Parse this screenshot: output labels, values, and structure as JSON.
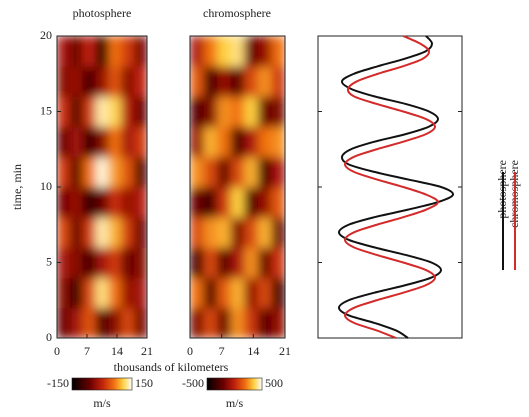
{
  "chart_data": [
    {
      "type": "heatmap",
      "title": "photosphere",
      "ylabel": "time, min",
      "xlabel": "thousands of kilometers",
      "x_edges": [
        0,
        3,
        6,
        9,
        12,
        15,
        18,
        21
      ],
      "y_edges": [
        0,
        2,
        4,
        6,
        8,
        10,
        12,
        14,
        16,
        18,
        20
      ],
      "values": [
        [
          -60,
          -20,
          40,
          -80,
          -40,
          30,
          -50
        ],
        [
          -40,
          -100,
          30,
          120,
          60,
          -30,
          -20
        ],
        [
          -20,
          -40,
          -90,
          -20,
          20,
          -60,
          -40
        ],
        [
          30,
          -60,
          20,
          130,
          90,
          20,
          -60
        ],
        [
          -50,
          -30,
          -110,
          -60,
          10,
          -30,
          -10
        ],
        [
          20,
          -70,
          60,
          140,
          80,
          40,
          -80
        ],
        [
          -60,
          -20,
          -100,
          -40,
          60,
          -20,
          20
        ],
        [
          10,
          -80,
          20,
          130,
          110,
          -10,
          -60
        ],
        [
          -40,
          -30,
          -90,
          -30,
          40,
          -40,
          0
        ],
        [
          -20,
          -60,
          0,
          -120,
          60,
          20,
          -50
        ]
      ],
      "xlim": [
        0,
        21
      ],
      "ylim": [
        0,
        20
      ],
      "xticks": [
        0,
        7,
        14,
        21
      ],
      "yticks": [
        0,
        5,
        10,
        15,
        20
      ],
      "colorbar": {
        "lim": [
          -150,
          150
        ],
        "ticks": [
          -150,
          150
        ],
        "label": "m/s"
      }
    },
    {
      "type": "heatmap",
      "title": "chromosphere",
      "x_edges": [
        0,
        3,
        6,
        9,
        12,
        15,
        18,
        21
      ],
      "y_edges": [
        0,
        2,
        4,
        6,
        8,
        10,
        12,
        14,
        16,
        18,
        20
      ],
      "values": [
        [
          -150,
          100,
          -200,
          250,
          50,
          -250,
          -100
        ],
        [
          200,
          -250,
          150,
          300,
          -100,
          100,
          -300
        ],
        [
          -300,
          100,
          -250,
          -50,
          250,
          -200,
          50
        ],
        [
          100,
          250,
          300,
          -150,
          100,
          300,
          -200
        ],
        [
          -200,
          -300,
          50,
          350,
          -250,
          -100,
          150
        ],
        [
          250,
          100,
          -200,
          100,
          300,
          -300,
          -50
        ],
        [
          -100,
          300,
          200,
          -300,
          -50,
          200,
          250
        ],
        [
          -250,
          -150,
          250,
          200,
          350,
          -200,
          -150
        ],
        [
          150,
          -300,
          -100,
          -250,
          100,
          250,
          50
        ],
        [
          -50,
          200,
          350,
          400,
          -200,
          -100,
          200
        ]
      ],
      "xlim": [
        0,
        21
      ],
      "ylim": [
        0,
        20
      ],
      "xticks": [
        0,
        7,
        14,
        21
      ],
      "colorbar": {
        "lim": [
          -500,
          500
        ],
        "ticks": [
          -500,
          500
        ],
        "label": "m/s"
      }
    },
    {
      "type": "line",
      "orientation": "vertical",
      "y": [
        0,
        0.5,
        1,
        1.5,
        2,
        2.5,
        3,
        3.5,
        4,
        4.5,
        5,
        5.5,
        6,
        6.5,
        7,
        7.5,
        8,
        8.5,
        9,
        9.5,
        10,
        10.5,
        11,
        11.5,
        12,
        12.5,
        13,
        13.5,
        14,
        14.5,
        15,
        15.5,
        16,
        16.5,
        17,
        17.5,
        18,
        18.5,
        19,
        19.5,
        20
      ],
      "ylim": [
        0,
        20
      ],
      "xlim": [
        -1.2,
        1.2
      ],
      "series": [
        {
          "name": "photosphere",
          "color": "#111111",
          "values": [
            0.3,
            0.1,
            -0.26,
            -0.69,
            -0.85,
            -0.69,
            -0.26,
            0.26,
            0.69,
            0.85,
            0.69,
            0.26,
            -0.26,
            -0.69,
            -0.85,
            -0.69,
            -0.26,
            0.3,
            0.8,
            1.05,
            0.85,
            0.3,
            -0.26,
            -0.69,
            -0.8,
            -0.65,
            -0.26,
            0.26,
            0.65,
            0.8,
            0.65,
            0.26,
            -0.26,
            -0.65,
            -0.8,
            -0.6,
            -0.2,
            0.25,
            0.6,
            0.7,
            0.6
          ]
        },
        {
          "name": "chromosphere",
          "color": "#d42a2a",
          "values": [
            0.1,
            -0.22,
            -0.6,
            -0.75,
            -0.6,
            -0.22,
            0.22,
            0.6,
            0.75,
            0.6,
            0.22,
            -0.22,
            -0.6,
            -0.75,
            -0.6,
            -0.22,
            0.22,
            0.6,
            0.8,
            0.6,
            0.22,
            -0.22,
            -0.6,
            -0.75,
            -0.6,
            -0.22,
            0.22,
            0.6,
            0.75,
            0.6,
            0.22,
            -0.22,
            -0.6,
            -0.7,
            -0.55,
            -0.2,
            0.22,
            0.55,
            0.65,
            0.5,
            0.22
          ]
        }
      ]
    }
  ]
}
